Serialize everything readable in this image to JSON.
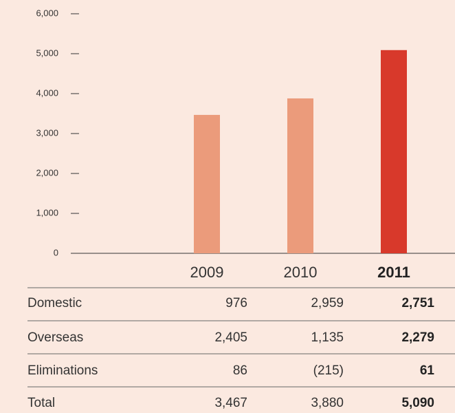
{
  "chart_data": {
    "type": "bar",
    "categories": [
      "2009",
      "2010",
      "2011"
    ],
    "values": [
      3467,
      3880,
      5090
    ],
    "colors": [
      "#eb9b7b",
      "#eb9b7b",
      "#d8392b"
    ],
    "ylim": [
      0,
      6000
    ],
    "yticks": [
      0,
      {
        "value": 1000,
        "label": "1,000"
      },
      {
        "value": 2000,
        "label": "2,000"
      },
      {
        "value": 3000,
        "label": "3,000"
      },
      {
        "value": 4000,
        "label": "4,000"
      },
      {
        "value": 5000,
        "label": "5,000"
      },
      {
        "value": 6000,
        "label": "6,000"
      }
    ]
  },
  "table": {
    "rows": [
      [
        "Domestic",
        "976",
        "2,959",
        "2,751"
      ],
      [
        "Overseas",
        "2,405",
        "1,135",
        "2,279"
      ],
      [
        "Eliminations",
        "86",
        "(215)",
        "61"
      ],
      [
        "Total",
        "3,467",
        "3,880",
        "5,090"
      ]
    ]
  }
}
